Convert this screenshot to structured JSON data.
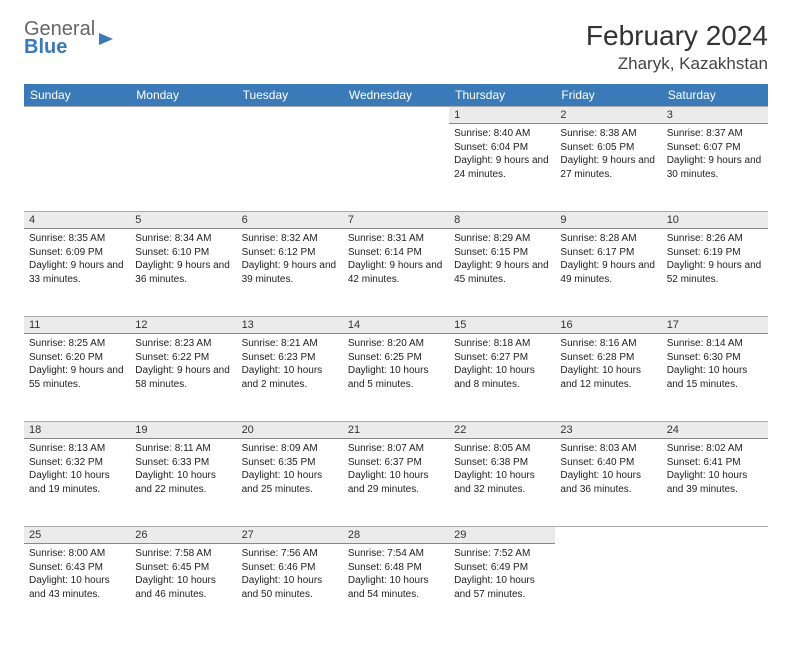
{
  "logo": {
    "line1": "General",
    "line2": "Blue"
  },
  "title": "February 2024",
  "location": "Zharyk, Kazakhstan",
  "colors": {
    "header_bg": "#3a7ab8",
    "header_text": "#ffffff",
    "daynum_bg": "#ebebeb",
    "border": "#888888",
    "text": "#222222"
  },
  "dayNames": [
    "Sunday",
    "Monday",
    "Tuesday",
    "Wednesday",
    "Thursday",
    "Friday",
    "Saturday"
  ],
  "weeks": [
    [
      null,
      null,
      null,
      null,
      {
        "n": "1",
        "sr": "Sunrise: 8:40 AM",
        "ss": "Sunset: 6:04 PM",
        "dl": "Daylight: 9 hours and 24 minutes."
      },
      {
        "n": "2",
        "sr": "Sunrise: 8:38 AM",
        "ss": "Sunset: 6:05 PM",
        "dl": "Daylight: 9 hours and 27 minutes."
      },
      {
        "n": "3",
        "sr": "Sunrise: 8:37 AM",
        "ss": "Sunset: 6:07 PM",
        "dl": "Daylight: 9 hours and 30 minutes."
      }
    ],
    [
      {
        "n": "4",
        "sr": "Sunrise: 8:35 AM",
        "ss": "Sunset: 6:09 PM",
        "dl": "Daylight: 9 hours and 33 minutes."
      },
      {
        "n": "5",
        "sr": "Sunrise: 8:34 AM",
        "ss": "Sunset: 6:10 PM",
        "dl": "Daylight: 9 hours and 36 minutes."
      },
      {
        "n": "6",
        "sr": "Sunrise: 8:32 AM",
        "ss": "Sunset: 6:12 PM",
        "dl": "Daylight: 9 hours and 39 minutes."
      },
      {
        "n": "7",
        "sr": "Sunrise: 8:31 AM",
        "ss": "Sunset: 6:14 PM",
        "dl": "Daylight: 9 hours and 42 minutes."
      },
      {
        "n": "8",
        "sr": "Sunrise: 8:29 AM",
        "ss": "Sunset: 6:15 PM",
        "dl": "Daylight: 9 hours and 45 minutes."
      },
      {
        "n": "9",
        "sr": "Sunrise: 8:28 AM",
        "ss": "Sunset: 6:17 PM",
        "dl": "Daylight: 9 hours and 49 minutes."
      },
      {
        "n": "10",
        "sr": "Sunrise: 8:26 AM",
        "ss": "Sunset: 6:19 PM",
        "dl": "Daylight: 9 hours and 52 minutes."
      }
    ],
    [
      {
        "n": "11",
        "sr": "Sunrise: 8:25 AM",
        "ss": "Sunset: 6:20 PM",
        "dl": "Daylight: 9 hours and 55 minutes."
      },
      {
        "n": "12",
        "sr": "Sunrise: 8:23 AM",
        "ss": "Sunset: 6:22 PM",
        "dl": "Daylight: 9 hours and 58 minutes."
      },
      {
        "n": "13",
        "sr": "Sunrise: 8:21 AM",
        "ss": "Sunset: 6:23 PM",
        "dl": "Daylight: 10 hours and 2 minutes."
      },
      {
        "n": "14",
        "sr": "Sunrise: 8:20 AM",
        "ss": "Sunset: 6:25 PM",
        "dl": "Daylight: 10 hours and 5 minutes."
      },
      {
        "n": "15",
        "sr": "Sunrise: 8:18 AM",
        "ss": "Sunset: 6:27 PM",
        "dl": "Daylight: 10 hours and 8 minutes."
      },
      {
        "n": "16",
        "sr": "Sunrise: 8:16 AM",
        "ss": "Sunset: 6:28 PM",
        "dl": "Daylight: 10 hours and 12 minutes."
      },
      {
        "n": "17",
        "sr": "Sunrise: 8:14 AM",
        "ss": "Sunset: 6:30 PM",
        "dl": "Daylight: 10 hours and 15 minutes."
      }
    ],
    [
      {
        "n": "18",
        "sr": "Sunrise: 8:13 AM",
        "ss": "Sunset: 6:32 PM",
        "dl": "Daylight: 10 hours and 19 minutes."
      },
      {
        "n": "19",
        "sr": "Sunrise: 8:11 AM",
        "ss": "Sunset: 6:33 PM",
        "dl": "Daylight: 10 hours and 22 minutes."
      },
      {
        "n": "20",
        "sr": "Sunrise: 8:09 AM",
        "ss": "Sunset: 6:35 PM",
        "dl": "Daylight: 10 hours and 25 minutes."
      },
      {
        "n": "21",
        "sr": "Sunrise: 8:07 AM",
        "ss": "Sunset: 6:37 PM",
        "dl": "Daylight: 10 hours and 29 minutes."
      },
      {
        "n": "22",
        "sr": "Sunrise: 8:05 AM",
        "ss": "Sunset: 6:38 PM",
        "dl": "Daylight: 10 hours and 32 minutes."
      },
      {
        "n": "23",
        "sr": "Sunrise: 8:03 AM",
        "ss": "Sunset: 6:40 PM",
        "dl": "Daylight: 10 hours and 36 minutes."
      },
      {
        "n": "24",
        "sr": "Sunrise: 8:02 AM",
        "ss": "Sunset: 6:41 PM",
        "dl": "Daylight: 10 hours and 39 minutes."
      }
    ],
    [
      {
        "n": "25",
        "sr": "Sunrise: 8:00 AM",
        "ss": "Sunset: 6:43 PM",
        "dl": "Daylight: 10 hours and 43 minutes."
      },
      {
        "n": "26",
        "sr": "Sunrise: 7:58 AM",
        "ss": "Sunset: 6:45 PM",
        "dl": "Daylight: 10 hours and 46 minutes."
      },
      {
        "n": "27",
        "sr": "Sunrise: 7:56 AM",
        "ss": "Sunset: 6:46 PM",
        "dl": "Daylight: 10 hours and 50 minutes."
      },
      {
        "n": "28",
        "sr": "Sunrise: 7:54 AM",
        "ss": "Sunset: 6:48 PM",
        "dl": "Daylight: 10 hours and 54 minutes."
      },
      {
        "n": "29",
        "sr": "Sunrise: 7:52 AM",
        "ss": "Sunset: 6:49 PM",
        "dl": "Daylight: 10 hours and 57 minutes."
      },
      null,
      null
    ]
  ]
}
